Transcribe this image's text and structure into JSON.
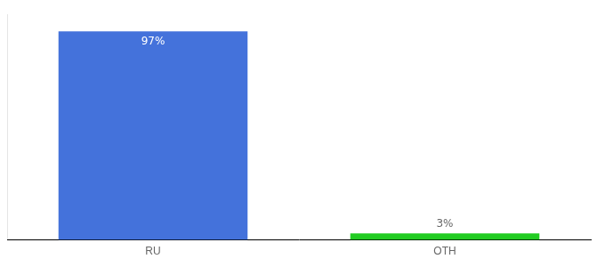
{
  "chart_data": {
    "type": "bar",
    "categories": [
      "RU",
      "OTH"
    ],
    "values": [
      97,
      3
    ],
    "colors": [
      "#4472db",
      "#22cc22"
    ],
    "value_labels": [
      "97%",
      "3%"
    ],
    "data_labels": true,
    "ylim": [
      0,
      105
    ],
    "grid": false,
    "tick_labels": "x"
  }
}
